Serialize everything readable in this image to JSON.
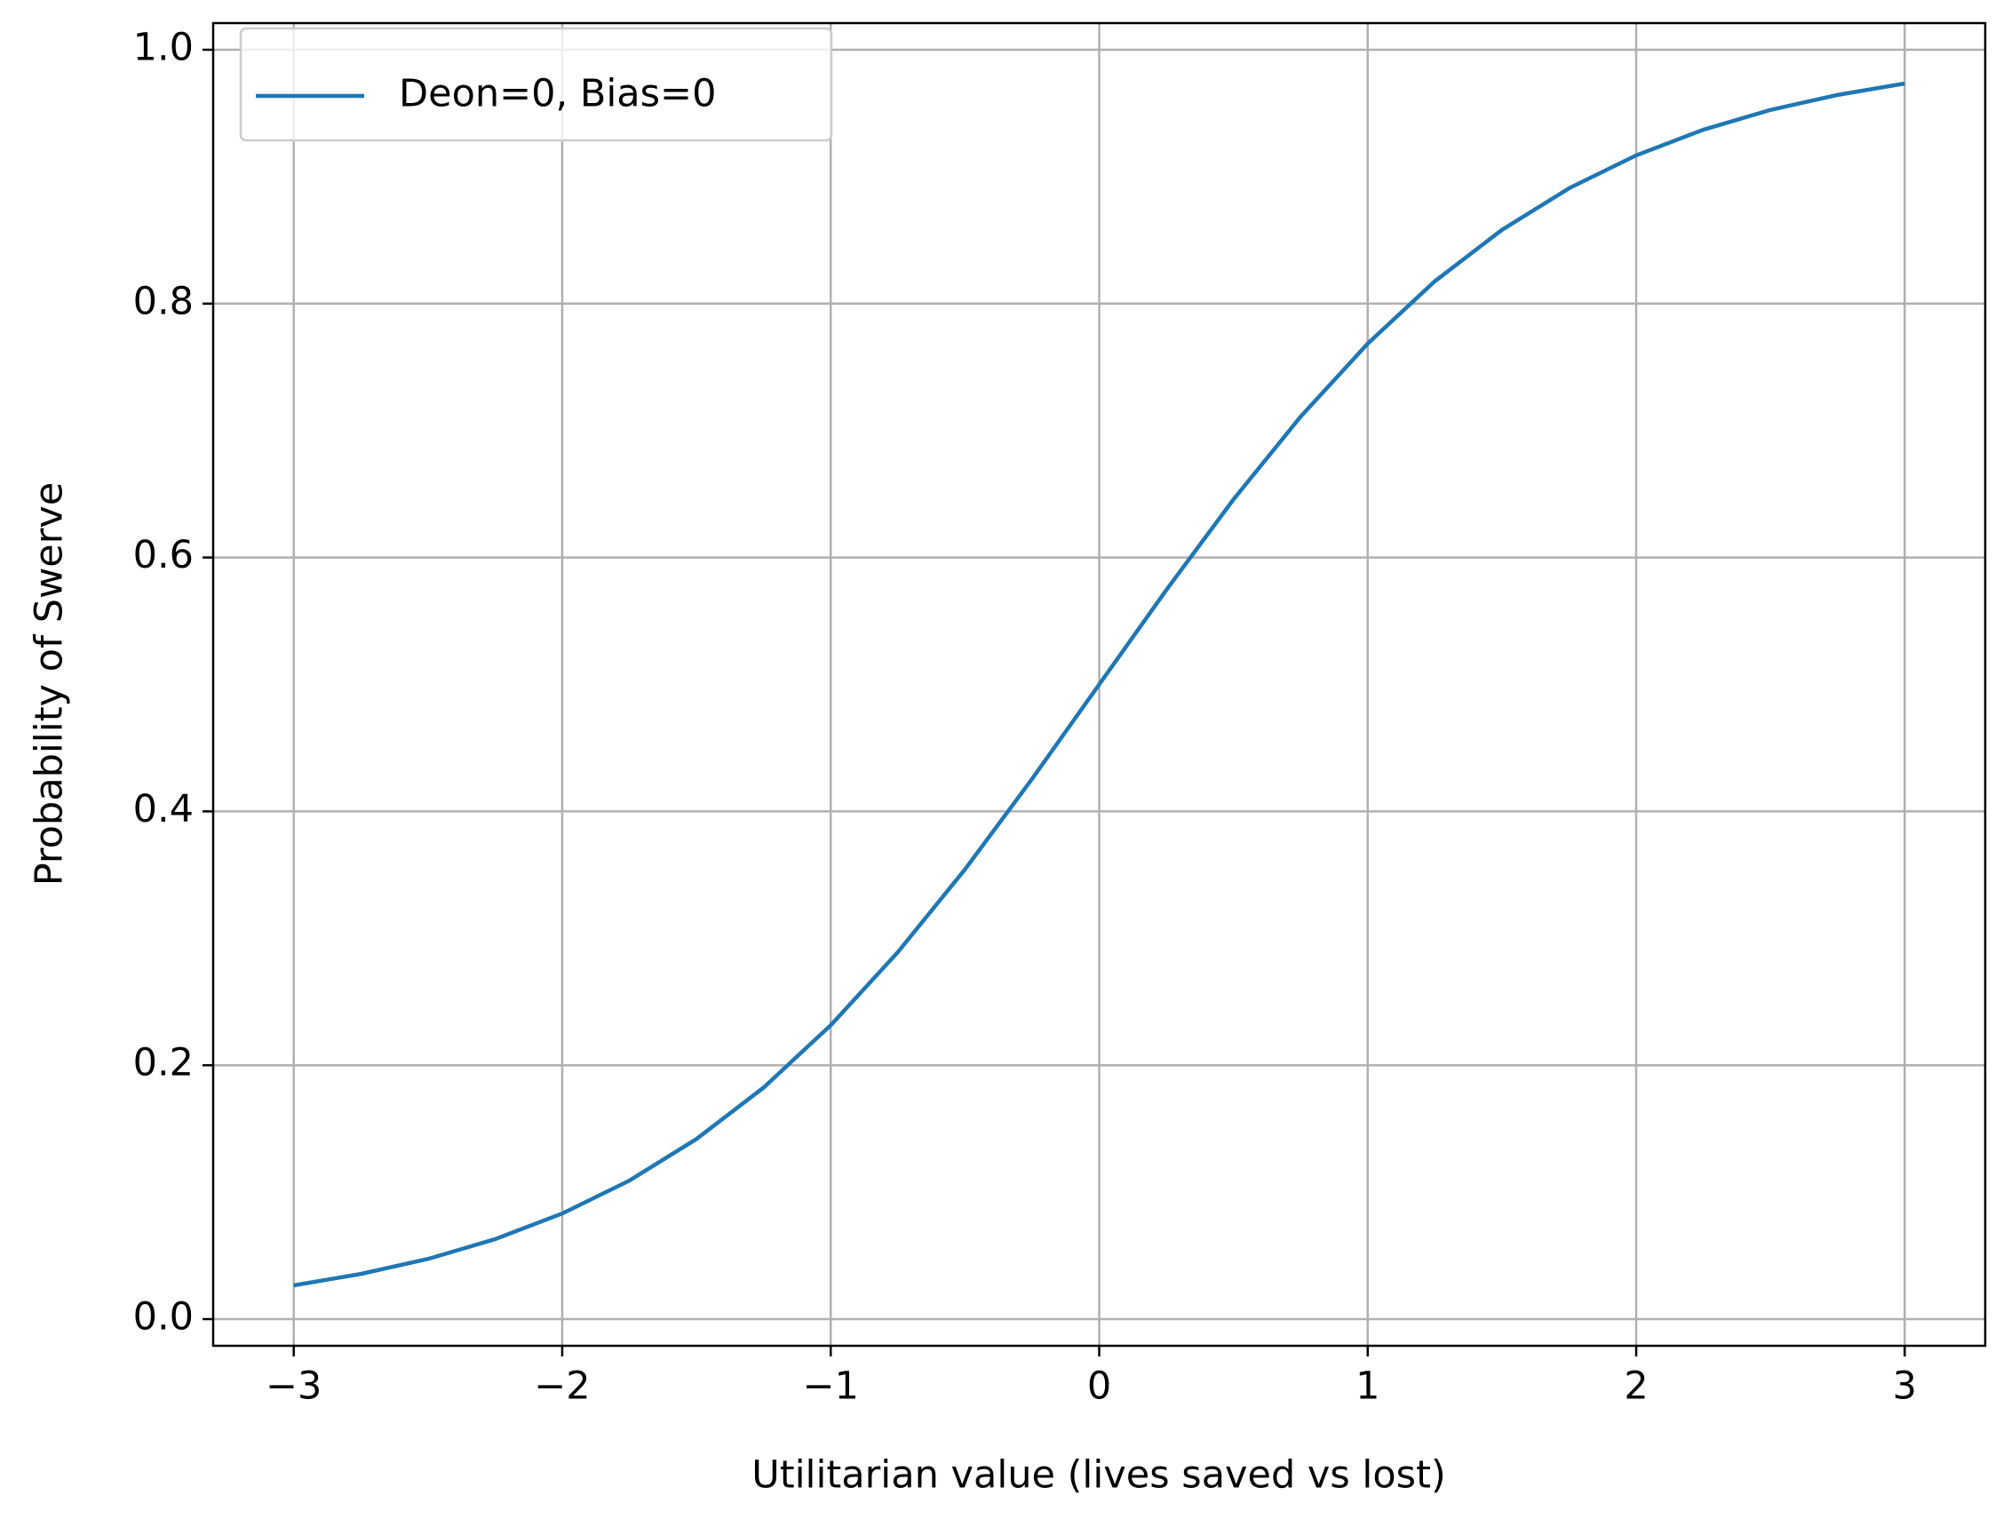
{
  "chart_data": {
    "type": "line",
    "xlabel": "Utilitarian value (lives saved vs lost)",
    "ylabel": "Probability of Swerve",
    "x": [
      -3,
      -2.75,
      -2.5,
      -2.25,
      -2,
      -1.75,
      -1.5,
      -1.25,
      -1,
      -0.75,
      -0.5,
      -0.25,
      0,
      0.25,
      0.5,
      0.75,
      1,
      1.25,
      1.5,
      1.75,
      2,
      2.25,
      2.5,
      2.75,
      3
    ],
    "series": [
      {
        "name": "Deon=0, Bias=0",
        "color": "#1f77b4",
        "values": [
          0.0266,
          0.0356,
          0.0474,
          0.063,
          0.0832,
          0.1091,
          0.1419,
          0.1824,
          0.2315,
          0.2891,
          0.3543,
          0.4256,
          0.5,
          0.5744,
          0.6457,
          0.7109,
          0.7685,
          0.8176,
          0.8581,
          0.8909,
          0.9168,
          0.937,
          0.9526,
          0.9644,
          0.9734
        ]
      }
    ],
    "xlim": [
      -3.3,
      3.3
    ],
    "ylim": [
      -0.021,
      1.021
    ],
    "xticks": [
      {
        "value": -3,
        "label": "−3"
      },
      {
        "value": -2,
        "label": "−2"
      },
      {
        "value": -1,
        "label": "−1"
      },
      0,
      1,
      2,
      3
    ],
    "yticks": [
      {
        "value": 0,
        "label": "0.0"
      },
      0.2,
      0.4,
      0.6,
      0.8,
      {
        "value": 1,
        "label": "1.0"
      }
    ],
    "grid": true,
    "legend": "upper left"
  }
}
